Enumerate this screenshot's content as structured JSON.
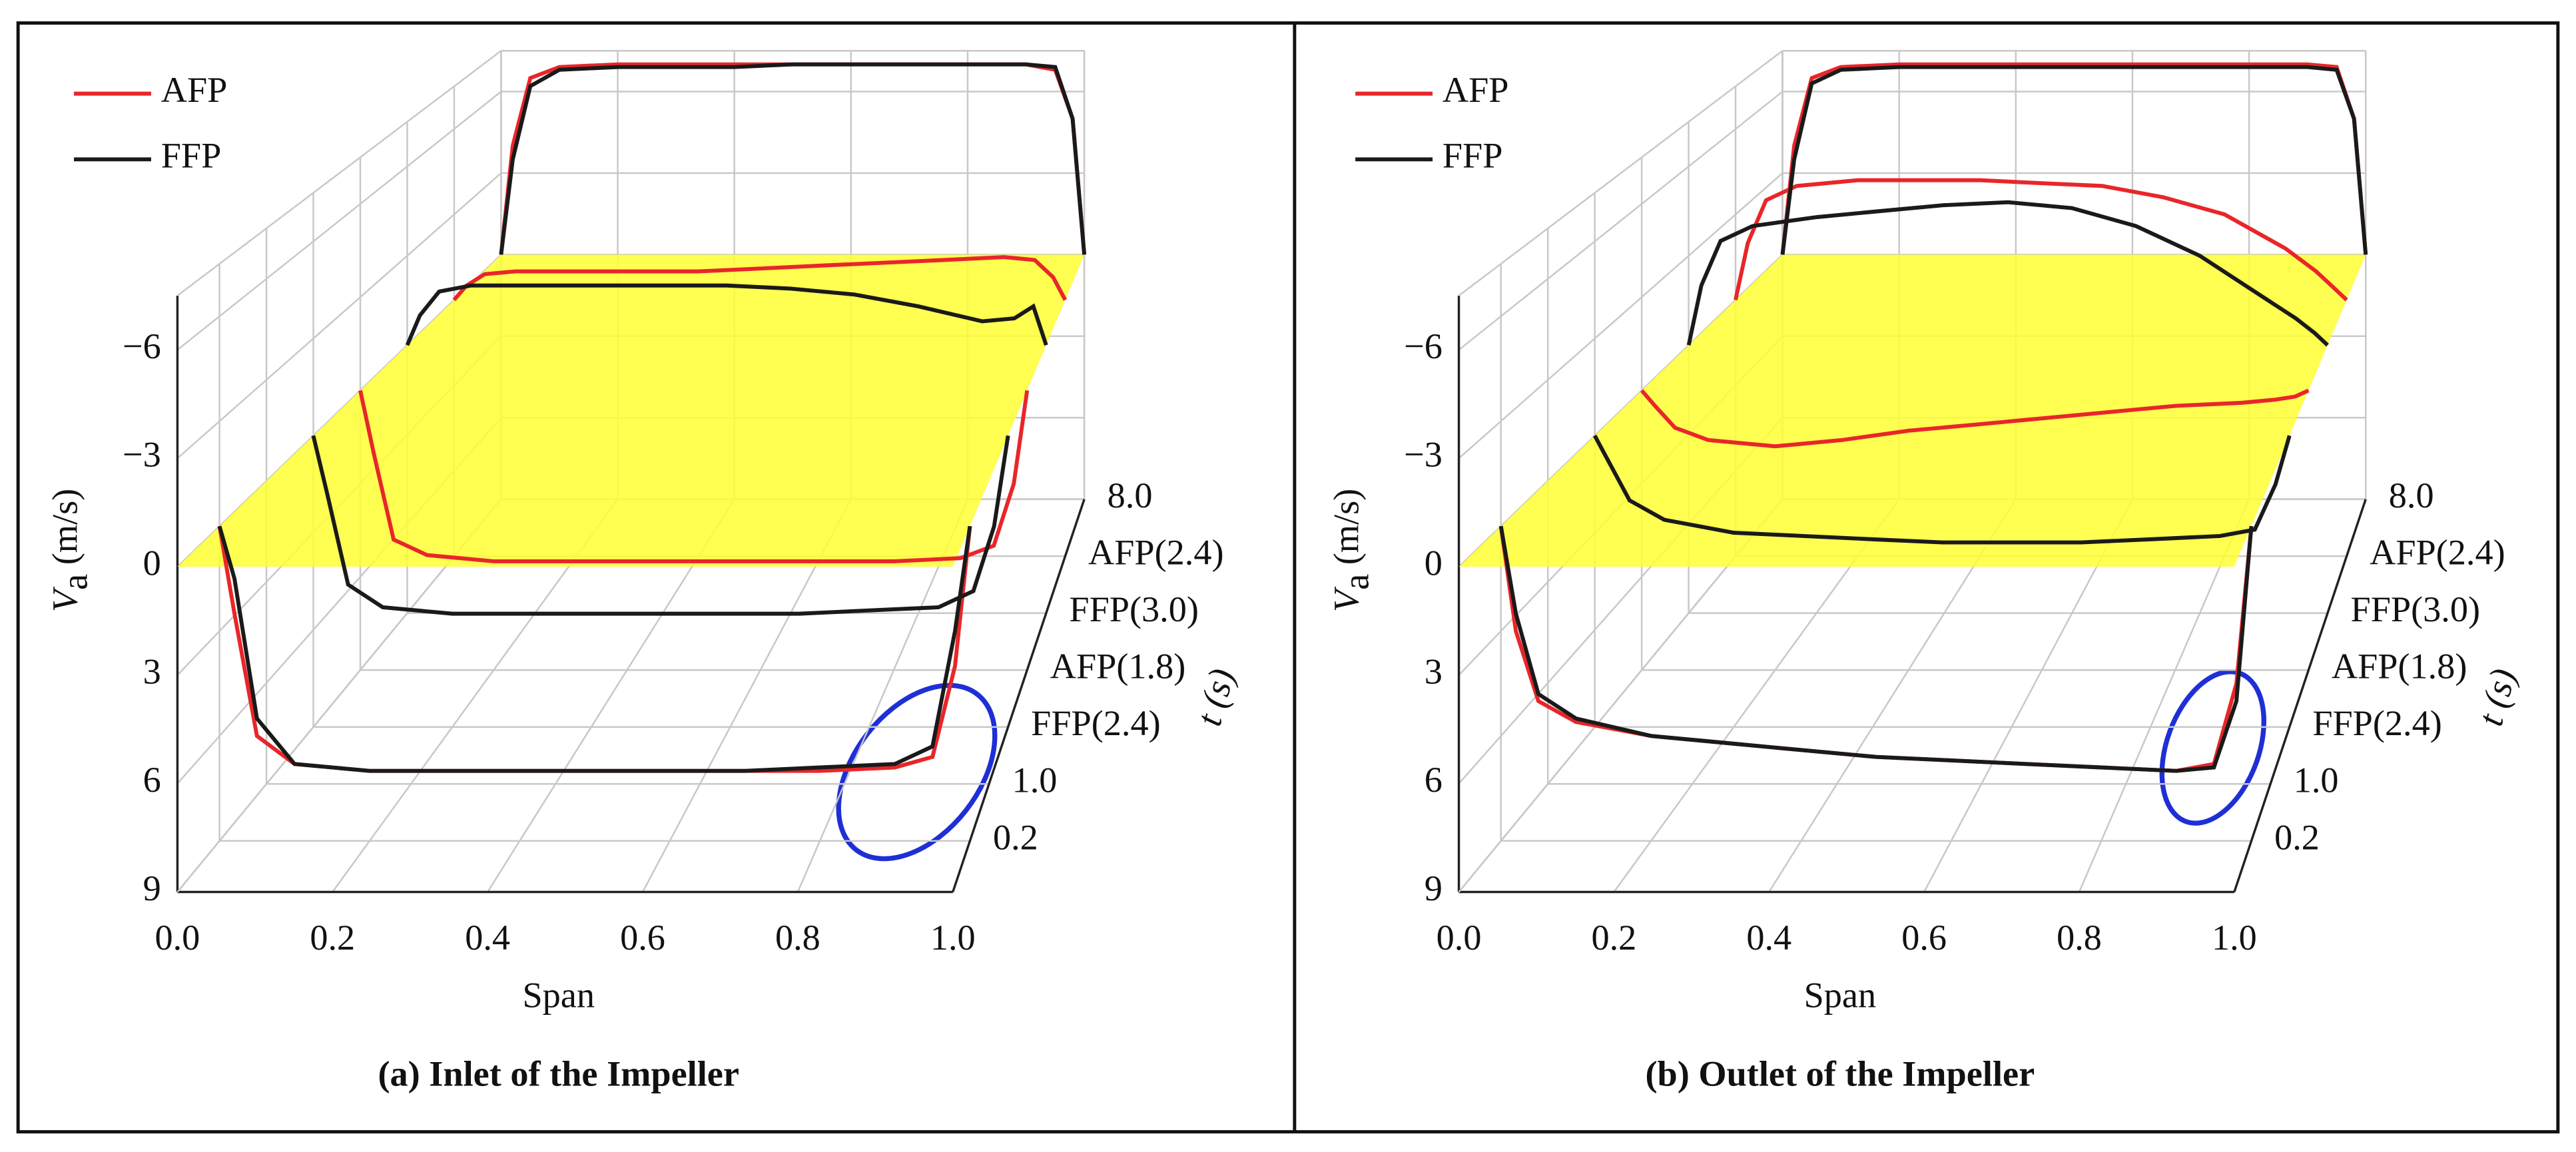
{
  "chart_data": [
    {
      "type": "waterfall3d",
      "title": "(a) Inlet of the Impeller",
      "xlabel": "Span",
      "ylabel": [
        "V",
        "a",
        " (m/s)"
      ],
      "zlabel": "t (s)",
      "x": [
        0,
        0.02,
        0.05,
        0.1,
        0.2,
        0.3,
        0.4,
        0.5,
        0.6,
        0.7,
        0.8,
        0.9,
        0.95,
        0.98,
        1.0
      ],
      "xlim": [
        0,
        1
      ],
      "xticks": [
        {
          "value": 0,
          "label": "0.0"
        },
        0.2,
        0.4,
        0.6,
        0.8,
        {
          "value": 1,
          "label": "1.0"
        }
      ],
      "ylim": [
        -7.5,
        9
      ],
      "yticks": [
        {
          "value": -6,
          "label": "−6"
        },
        {
          "value": -3,
          "label": "−3"
        },
        0,
        3,
        6,
        9
      ],
      "zticks": [
        "0.2",
        "1.0",
        "FFP(2.4)",
        "AFP(1.8)",
        "FFP(3.0)",
        "AFP(2.4)",
        "8.0"
      ],
      "legend": "upper left",
      "plane": 0,
      "plane_color": "#ffff33",
      "series": [
        {
          "name": "AFP",
          "color": "#e8262a",
          "values": [
            [
              0,
              2.5,
              6,
              6.8,
              7,
              7,
              7,
              7,
              7,
              7,
              7,
              6.9,
              6.6,
              4,
              0
            ],
            null,
            null,
            [
              0,
              2,
              4.8,
              5.3,
              5.5,
              5.5,
              5.5,
              5.5,
              5.5,
              5.5,
              5.5,
              5.4,
              5,
              3,
              0
            ],
            null,
            [
              0,
              -0.5,
              -0.9,
              -1,
              -1,
              -1,
              -1,
              -1.1,
              -1.2,
              -1.3,
              -1.4,
              -1.5,
              -1.4,
              -0.8,
              0
            ],
            [
              0,
              -4,
              -6.5,
              -6.9,
              -7,
              -7,
              -7,
              -7,
              -7,
              -7,
              -7,
              -7,
              -6.8,
              -5,
              0
            ]
          ]
        },
        {
          "name": "FFP",
          "color": "#1a1a1a",
          "values": [
            [
              0,
              1.5,
              5.5,
              6.8,
              7,
              7,
              7,
              7,
              7,
              7,
              6.9,
              6.8,
              6.3,
              3,
              0
            ],
            null,
            [
              0,
              1.8,
              4.6,
              5.3,
              5.5,
              5.5,
              5.5,
              5.5,
              5.5,
              5.5,
              5.4,
              5.3,
              4.8,
              2.8,
              0
            ],
            null,
            [
              0,
              -1,
              -1.8,
              -2,
              -2,
              -2,
              -2,
              -2,
              -1.9,
              -1.7,
              -1.3,
              -0.8,
              -0.9,
              -1.3,
              0
            ],
            null,
            [
              0,
              -3.5,
              -6.2,
              -6.8,
              -6.9,
              -6.9,
              -6.9,
              -7,
              -7,
              -7,
              -7,
              -7,
              -6.9,
              -5,
              0
            ]
          ]
        }
      ]
    },
    {
      "type": "waterfall3d",
      "title": "(b) Outlet of the Impeller",
      "xlabel": "Span",
      "ylabel": [
        "V",
        "a",
        " (m/s)"
      ],
      "zlabel": "t (s)",
      "x": [
        0,
        0.02,
        0.05,
        0.1,
        0.2,
        0.3,
        0.4,
        0.5,
        0.6,
        0.7,
        0.8,
        0.9,
        0.95,
        0.98,
        1.0
      ],
      "xlim": [
        0,
        1
      ],
      "xticks": [
        {
          "value": 0,
          "label": "0.0"
        },
        0.2,
        0.4,
        0.6,
        0.8,
        {
          "value": 1,
          "label": "1.0"
        }
      ],
      "ylim": [
        -7.5,
        9
      ],
      "yticks": [
        {
          "value": -6,
          "label": "−6"
        },
        {
          "value": -3,
          "label": "−3"
        },
        0,
        3,
        6,
        9
      ],
      "zticks": [
        "0.2",
        "1.0",
        "FFP(2.4)",
        "AFP(1.8)",
        "FFP(3.0)",
        "AFP(2.4)",
        "8.0"
      ],
      "legend": "upper left",
      "plane": 0,
      "plane_color": "#ffff33",
      "series": [
        {
          "name": "AFP",
          "color": "#e8262a",
          "values": [
            [
              0,
              3,
              5,
              5.6,
              6,
              6.2,
              6.4,
              6.6,
              6.7,
              6.8,
              6.9,
              7,
              6.8,
              4.5,
              0
            ],
            null,
            null,
            [
              0,
              0.5,
              1.2,
              1.6,
              1.8,
              1.6,
              1.3,
              1.1,
              0.9,
              0.7,
              0.5,
              0.4,
              0.3,
              0.2,
              0
            ],
            null,
            [
              0,
              -2,
              -3.5,
              -4,
              -4.2,
              -4.2,
              -4.2,
              -4.1,
              -4,
              -3.6,
              -3,
              -1.8,
              -1,
              -0.4,
              0
            ],
            [
              0,
              -4,
              -6.5,
              -6.9,
              -7,
              -7,
              -7,
              -7,
              -7,
              -7,
              -7,
              -7,
              -6.9,
              -5,
              0
            ]
          ]
        },
        {
          "name": "FFP",
          "color": "#1a1a1a",
          "values": [
            [
              0,
              2.5,
              4.8,
              5.5,
              6,
              6.2,
              6.4,
              6.6,
              6.7,
              6.8,
              6.9,
              7,
              6.9,
              5,
              0
            ],
            null,
            [
              0,
              0.8,
              2,
              2.6,
              3,
              3.1,
              3.2,
              3.3,
              3.3,
              3.3,
              3.2,
              3.1,
              2.9,
              1.5,
              0
            ],
            null,
            [
              0,
              -2,
              -3.5,
              -4,
              -4.3,
              -4.5,
              -4.7,
              -4.8,
              -4.6,
              -4,
              -3,
              -1.6,
              -0.9,
              -0.4,
              0
            ],
            null,
            [
              0,
              -3.5,
              -6.3,
              -6.8,
              -6.9,
              -6.9,
              -6.9,
              -6.9,
              -6.9,
              -6.9,
              -6.9,
              -6.9,
              -6.8,
              -5,
              0
            ]
          ]
        }
      ]
    }
  ]
}
